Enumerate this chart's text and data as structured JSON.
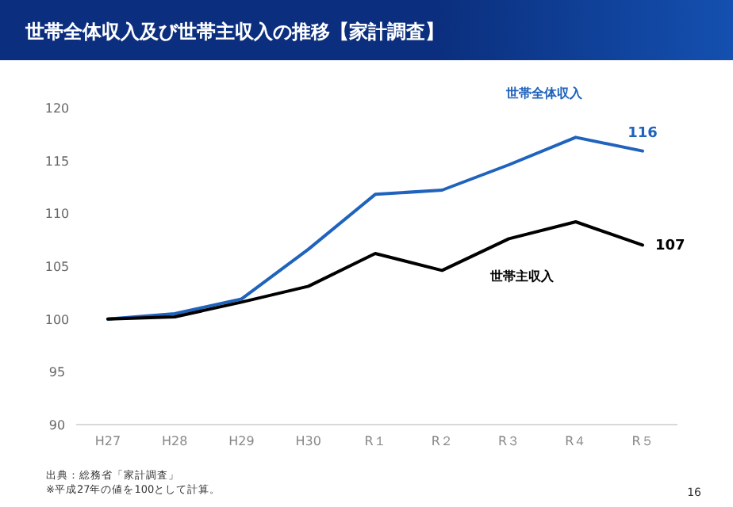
{
  "chart_data": {
    "type": "line",
    "title": "世帯全体収入及び世帯主収入の推移【家計調査】",
    "categories": [
      "H27",
      "H28",
      "H29",
      "H30",
      "R１",
      "R２",
      "R３",
      "R４",
      "R５"
    ],
    "series": [
      {
        "name": "世帯全体収入",
        "color": "#1f63bd",
        "values": [
          100,
          100.5,
          101.9,
          106.6,
          111.8,
          112.2,
          114.6,
          117.2,
          115.9
        ],
        "value_labels": [
          null,
          null,
          null,
          null,
          null,
          null,
          null,
          null,
          "116"
        ]
      },
      {
        "name": "世帯主収入",
        "color": "#000000",
        "values": [
          100,
          100.2,
          101.6,
          103.1,
          106.2,
          104.6,
          107.6,
          109.2,
          107.0
        ],
        "value_labels": [
          null,
          null,
          null,
          null,
          null,
          null,
          null,
          null,
          "107"
        ]
      }
    ],
    "ylim": [
      90,
      120
    ],
    "yticks": [
      90,
      95,
      100,
      105,
      110,
      115,
      120
    ],
    "annotations": [
      "出典：総務省「家計調査」",
      "※平成27年の値を100として計算。",
      "16"
    ]
  }
}
